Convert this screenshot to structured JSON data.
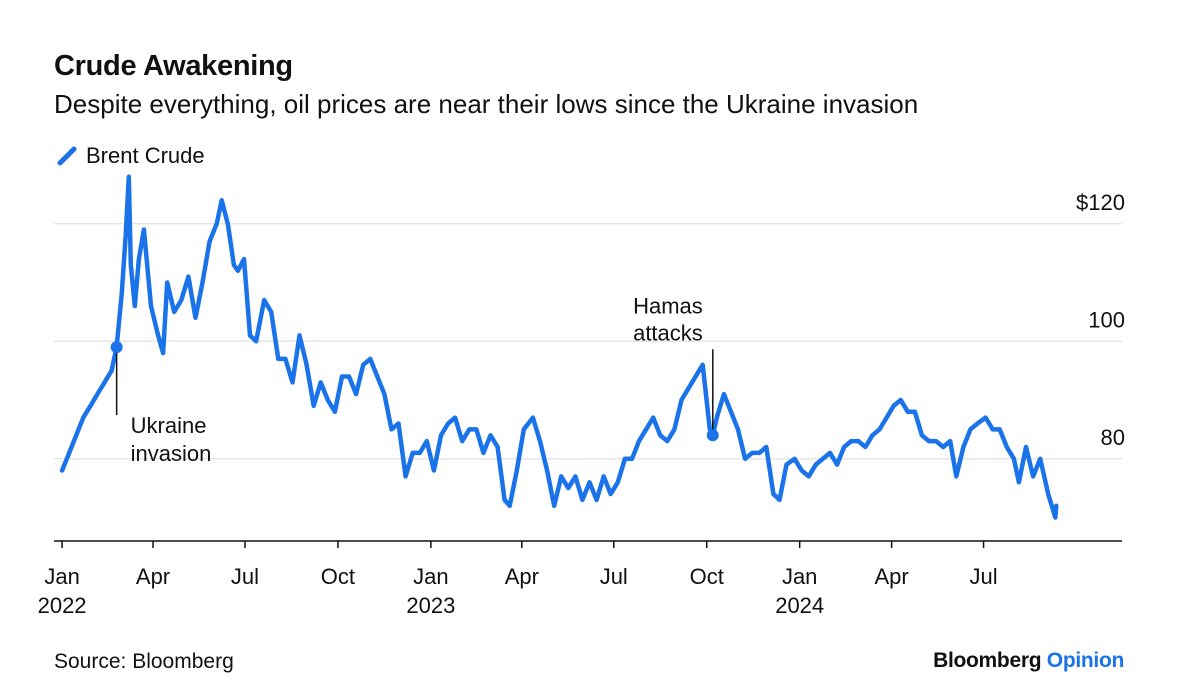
{
  "chart_data": {
    "type": "line",
    "title": "Crude Awakening",
    "subtitle": "Despite everything, oil prices are near their lows since the Ukraine invasion",
    "series": [
      {
        "name": "Brent Crude",
        "color": "#1a73e8",
        "points": [
          [
            "2022-01-01",
            78
          ],
          [
            "2022-01-08",
            81
          ],
          [
            "2022-01-15",
            84
          ],
          [
            "2022-01-22",
            87
          ],
          [
            "2022-01-29",
            89
          ],
          [
            "2022-02-05",
            91
          ],
          [
            "2022-02-12",
            93
          ],
          [
            "2022-02-19",
            95
          ],
          [
            "2022-02-24",
            99
          ],
          [
            "2022-03-01",
            108
          ],
          [
            "2022-03-05",
            118
          ],
          [
            "2022-03-08",
            128
          ],
          [
            "2022-03-10",
            113
          ],
          [
            "2022-03-14",
            106
          ],
          [
            "2022-03-18",
            114
          ],
          [
            "2022-03-23",
            119
          ],
          [
            "2022-03-30",
            106
          ],
          [
            "2022-04-06",
            101
          ],
          [
            "2022-04-11",
            98
          ],
          [
            "2022-04-15",
            110
          ],
          [
            "2022-04-22",
            105
          ],
          [
            "2022-04-29",
            107
          ],
          [
            "2022-05-06",
            111
          ],
          [
            "2022-05-13",
            104
          ],
          [
            "2022-05-20",
            110
          ],
          [
            "2022-05-27",
            117
          ],
          [
            "2022-06-03",
            120
          ],
          [
            "2022-06-08",
            124
          ],
          [
            "2022-06-14",
            120
          ],
          [
            "2022-06-20",
            113
          ],
          [
            "2022-06-24",
            112
          ],
          [
            "2022-06-30",
            114
          ],
          [
            "2022-07-06",
            101
          ],
          [
            "2022-07-12",
            100
          ],
          [
            "2022-07-20",
            107
          ],
          [
            "2022-07-27",
            105
          ],
          [
            "2022-08-03",
            97
          ],
          [
            "2022-08-10",
            97
          ],
          [
            "2022-08-17",
            93
          ],
          [
            "2022-08-24",
            101
          ],
          [
            "2022-08-31",
            96
          ],
          [
            "2022-09-07",
            89
          ],
          [
            "2022-09-14",
            93
          ],
          [
            "2022-09-21",
            90
          ],
          [
            "2022-09-28",
            88
          ],
          [
            "2022-10-05",
            94
          ],
          [
            "2022-10-12",
            94
          ],
          [
            "2022-10-19",
            91
          ],
          [
            "2022-10-26",
            96
          ],
          [
            "2022-11-02",
            97
          ],
          [
            "2022-11-09",
            94
          ],
          [
            "2022-11-16",
            91
          ],
          [
            "2022-11-23",
            85
          ],
          [
            "2022-11-30",
            86
          ],
          [
            "2022-12-07",
            77
          ],
          [
            "2022-12-14",
            81
          ],
          [
            "2022-12-21",
            81
          ],
          [
            "2022-12-28",
            83
          ],
          [
            "2023-01-04",
            78
          ],
          [
            "2023-01-11",
            84
          ],
          [
            "2023-01-18",
            86
          ],
          [
            "2023-01-25",
            87
          ],
          [
            "2023-02-01",
            83
          ],
          [
            "2023-02-08",
            85
          ],
          [
            "2023-02-15",
            85
          ],
          [
            "2023-02-22",
            81
          ],
          [
            "2023-03-01",
            84
          ],
          [
            "2023-03-08",
            82
          ],
          [
            "2023-03-15",
            73
          ],
          [
            "2023-03-20",
            72
          ],
          [
            "2023-03-27",
            78
          ],
          [
            "2023-04-03",
            85
          ],
          [
            "2023-04-12",
            87
          ],
          [
            "2023-04-19",
            83
          ],
          [
            "2023-04-26",
            78
          ],
          [
            "2023-05-03",
            72
          ],
          [
            "2023-05-10",
            77
          ],
          [
            "2023-05-17",
            75
          ],
          [
            "2023-05-24",
            77
          ],
          [
            "2023-05-31",
            73
          ],
          [
            "2023-06-07",
            76
          ],
          [
            "2023-06-14",
            73
          ],
          [
            "2023-06-21",
            77
          ],
          [
            "2023-06-28",
            74
          ],
          [
            "2023-07-05",
            76
          ],
          [
            "2023-07-12",
            80
          ],
          [
            "2023-07-19",
            80
          ],
          [
            "2023-07-26",
            83
          ],
          [
            "2023-08-02",
            85
          ],
          [
            "2023-08-09",
            87
          ],
          [
            "2023-08-16",
            84
          ],
          [
            "2023-08-23",
            83
          ],
          [
            "2023-08-30",
            85
          ],
          [
            "2023-09-06",
            90
          ],
          [
            "2023-09-13",
            92
          ],
          [
            "2023-09-20",
            94
          ],
          [
            "2023-09-27",
            96
          ],
          [
            "2023-10-04",
            85
          ],
          [
            "2023-10-07",
            84
          ],
          [
            "2023-10-11",
            87
          ],
          [
            "2023-10-18",
            91
          ],
          [
            "2023-10-25",
            88
          ],
          [
            "2023-11-01",
            85
          ],
          [
            "2023-11-08",
            80
          ],
          [
            "2023-11-15",
            81
          ],
          [
            "2023-11-22",
            81
          ],
          [
            "2023-11-29",
            82
          ],
          [
            "2023-12-06",
            74
          ],
          [
            "2023-12-12",
            73
          ],
          [
            "2023-12-19",
            79
          ],
          [
            "2023-12-27",
            80
          ],
          [
            "2024-01-03",
            78
          ],
          [
            "2024-01-10",
            77
          ],
          [
            "2024-01-17",
            79
          ],
          [
            "2024-01-24",
            80
          ],
          [
            "2024-01-31",
            81
          ],
          [
            "2024-02-07",
            79
          ],
          [
            "2024-02-14",
            82
          ],
          [
            "2024-02-21",
            83
          ],
          [
            "2024-02-28",
            83
          ],
          [
            "2024-03-06",
            82
          ],
          [
            "2024-03-13",
            84
          ],
          [
            "2024-03-20",
            85
          ],
          [
            "2024-03-27",
            87
          ],
          [
            "2024-04-03",
            89
          ],
          [
            "2024-04-10",
            90
          ],
          [
            "2024-04-17",
            88
          ],
          [
            "2024-04-24",
            88
          ],
          [
            "2024-05-01",
            84
          ],
          [
            "2024-05-08",
            83
          ],
          [
            "2024-05-15",
            83
          ],
          [
            "2024-05-22",
            82
          ],
          [
            "2024-05-29",
            83
          ],
          [
            "2024-06-04",
            77
          ],
          [
            "2024-06-11",
            82
          ],
          [
            "2024-06-18",
            85
          ],
          [
            "2024-06-25",
            86
          ],
          [
            "2024-07-03",
            87
          ],
          [
            "2024-07-10",
            85
          ],
          [
            "2024-07-17",
            85
          ],
          [
            "2024-07-24",
            82
          ],
          [
            "2024-07-31",
            80
          ],
          [
            "2024-08-05",
            76
          ],
          [
            "2024-08-12",
            82
          ],
          [
            "2024-08-19",
            77
          ],
          [
            "2024-08-26",
            80
          ],
          [
            "2024-09-03",
            74
          ],
          [
            "2024-09-10",
            70
          ],
          [
            "2024-09-11",
            72
          ]
        ]
      }
    ],
    "y_ticks": [
      {
        "value": 120,
        "label": "$120"
      },
      {
        "value": 100,
        "label": "100"
      },
      {
        "value": 80,
        "label": "80"
      }
    ],
    "ylim": [
      66,
      130
    ],
    "x_range": [
      "2021-12-24",
      "2024-11-15"
    ],
    "x_ticks": [
      {
        "date": "2022-01-01",
        "month": "Jan",
        "year": "2022"
      },
      {
        "date": "2022-04-01",
        "month": "Apr",
        "year": ""
      },
      {
        "date": "2022-07-01",
        "month": "Jul",
        "year": ""
      },
      {
        "date": "2022-10-01",
        "month": "Oct",
        "year": ""
      },
      {
        "date": "2023-01-01",
        "month": "Jan",
        "year": "2023"
      },
      {
        "date": "2023-04-01",
        "month": "Apr",
        "year": ""
      },
      {
        "date": "2023-07-01",
        "month": "Jul",
        "year": ""
      },
      {
        "date": "2023-10-01",
        "month": "Oct",
        "year": ""
      },
      {
        "date": "2024-01-01",
        "month": "Jan",
        "year": "2024"
      },
      {
        "date": "2024-04-01",
        "month": "Apr",
        "year": ""
      },
      {
        "date": "2024-07-01",
        "month": "Jul",
        "year": ""
      }
    ],
    "annotations": [
      {
        "date": "2022-02-24",
        "value": 99,
        "line1": "Ukraine",
        "line2": "invasion",
        "position": "below-right"
      },
      {
        "date": "2023-10-07",
        "value": 84,
        "line1": "Hamas",
        "line2": "attacks",
        "position": "above-left"
      }
    ],
    "grid": true,
    "legend_placement": "top-left"
  },
  "footer": {
    "source": "Source: Bloomberg",
    "brand_part1": "Bloomberg",
    "brand_part2": "Opinion"
  }
}
